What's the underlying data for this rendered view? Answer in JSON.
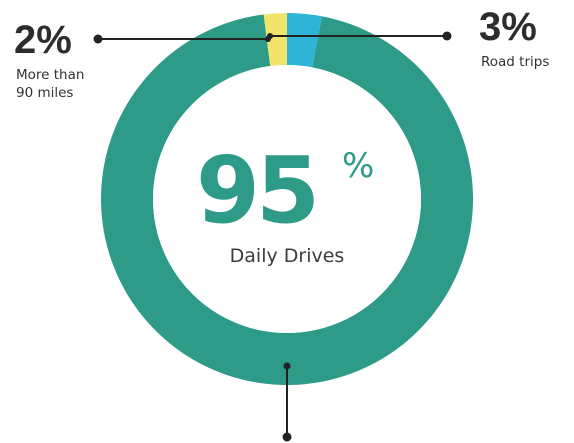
{
  "chart_data": {
    "type": "pie",
    "style": "donut",
    "slices": [
      {
        "label": "Daily Drives",
        "value": 95,
        "display": "95%",
        "color": "#2e9a88"
      },
      {
        "label": "More than 90 miles",
        "value": 2,
        "display": "2%",
        "color": "#f2e36a"
      },
      {
        "label": "Road trips",
        "value": 3,
        "display": "3%",
        "color": "#2db4d6"
      }
    ],
    "center": {
      "value_text": "95",
      "unit_text": "%",
      "label": "Daily Drives"
    },
    "callouts": {
      "left": {
        "value": "2%",
        "line1": "More than",
        "line2": "90 miles"
      },
      "right": {
        "value": "3%",
        "line1": "Road trips"
      }
    }
  }
}
